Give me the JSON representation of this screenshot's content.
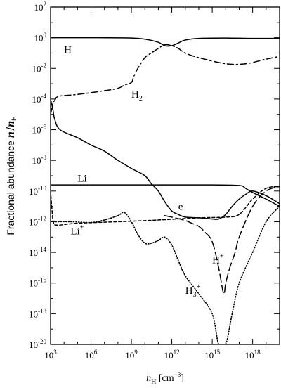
{
  "chart_data": {
    "type": "line",
    "title": "",
    "xlabel": "n_H [cm^-3]",
    "xlabel_parts": {
      "main": "n",
      "sub": "H",
      "unit": " [cm",
      "exp": "−3",
      "close": "]"
    },
    "ylabel": "Fractional abundance n_i/n_H",
    "ylabel_parts": {
      "text": "Fractional abundance ",
      "ni": "n",
      "i": "i",
      "slash": "/",
      "nh": "n",
      "h": "H"
    },
    "x_scale": "log",
    "y_scale": "log",
    "xlim": [
      1000,
      1e+20
    ],
    "ylim": [
      1e-20,
      100
    ],
    "x_ticks": [
      {
        "base": "10",
        "exp": "3",
        "value": 1000.0
      },
      {
        "base": "10",
        "exp": "6",
        "value": 1000000.0
      },
      {
        "base": "10",
        "exp": "9",
        "value": 1000000000.0
      },
      {
        "base": "10",
        "exp": "12",
        "value": 1000000000000.0
      },
      {
        "base": "10",
        "exp": "15",
        "value": 1000000000000000.0
      },
      {
        "base": "10",
        "exp": "18",
        "value": 1e+18
      }
    ],
    "y_ticks": [
      {
        "base": "10",
        "exp": "2",
        "value": 100.0
      },
      {
        "base": "10",
        "exp": "0",
        "value": 1.0
      },
      {
        "base": "10",
        "exp": "-2",
        "value": 0.01
      },
      {
        "base": "10",
        "exp": "-4",
        "value": 0.0001
      },
      {
        "base": "10",
        "exp": "-6",
        "value": 1e-06
      },
      {
        "base": "10",
        "exp": "-8",
        "value": 1e-08
      },
      {
        "base": "10",
        "exp": "-10",
        "value": 1e-10
      },
      {
        "base": "10",
        "exp": "-12",
        "value": 1e-12
      },
      {
        "base": "10",
        "exp": "-14",
        "value": 1e-14
      },
      {
        "base": "10",
        "exp": "-16",
        "value": 1e-16
      },
      {
        "base": "10",
        "exp": "-18",
        "value": 1e-18
      },
      {
        "base": "10",
        "exp": "-20",
        "value": 1e-20
      }
    ],
    "grid": false,
    "legend": "none",
    "series": [
      {
        "name": "H",
        "style": "solid",
        "label": {
          "text": "H",
          "sub": "",
          "sup": "",
          "at_x": 10000.0,
          "at_y": 0.1
        },
        "points": [
          [
            1000.0,
            1.0
          ],
          [
            1000000.0,
            1.0
          ],
          [
            1000000000.0,
            0.95
          ],
          [
            10000000000.0,
            0.8
          ],
          [
            100000000000.0,
            0.5
          ],
          [
            300000000000.0,
            0.3
          ],
          [
            1000000000000.0,
            0.3
          ],
          [
            3000000000000.0,
            0.45
          ],
          [
            10000000000000.0,
            0.7
          ],
          [
            100000000000000.0,
            0.9
          ],
          [
            1e+16,
            0.95
          ],
          [
            1e+18,
            0.9
          ],
          [
            1e+20,
            0.9
          ]
        ]
      },
      {
        "name": "H2",
        "style": "dashdot",
        "label": {
          "text": "H",
          "sub": "2",
          "sup": "",
          "at_x": 1000000000.0,
          "at_y": 0.00012
        },
        "points": [
          [
            1000.0,
            1e-05
          ],
          [
            1500.0,
            5e-05
          ],
          [
            2000.0,
            8e-05
          ],
          [
            4000.0,
            0.00015
          ],
          [
            100000.0,
            0.0002
          ],
          [
            10000000.0,
            0.00035
          ],
          [
            100000000.0,
            0.0005
          ],
          [
            300000000.0,
            0.0008
          ],
          [
            1000000000.0,
            0.0012
          ],
          [
            1500000000.0,
            0.003
          ],
          [
            3000000000.0,
            0.01
          ],
          [
            10000000000.0,
            0.05
          ],
          [
            30000000000.0,
            0.1
          ],
          [
            100000000000.0,
            0.2
          ],
          [
            300000000000.0,
            0.35
          ],
          [
            1000000000000.0,
            0.3
          ],
          [
            3000000000000.0,
            0.2
          ],
          [
            10000000000000.0,
            0.1
          ],
          [
            100000000000000.0,
            0.05
          ],
          [
            1e+16,
            0.02
          ],
          [
            3e+17,
            0.02
          ],
          [
            1e+19,
            0.04
          ],
          [
            1e+20,
            0.06
          ]
        ]
      },
      {
        "name": "e",
        "style": "solid",
        "label": {
          "text": "e",
          "sub": "",
          "sup": "",
          "at_x": 3000000000000.0,
          "at_y": 6e-12
        },
        "points": [
          [
            1000.0,
            0.0001
          ],
          [
            1500.0,
            2e-05
          ],
          [
            2000.0,
            5e-06
          ],
          [
            5000.0,
            1e-06
          ],
          [
            100000.0,
            3e-07
          ],
          [
            1000000.0,
            1e-07
          ],
          [
            10000000.0,
            4e-08
          ],
          [
            100000000.0,
            1e-08
          ],
          [
            1000000000.0,
            3e-09
          ],
          [
            10000000000.0,
            1e-09
          ],
          [
            30000000000.0,
            3e-10
          ],
          [
            100000000000.0,
            1e-10
          ],
          [
            300000000000.0,
            2e-11
          ],
          [
            1000000000000.0,
            5e-12
          ],
          [
            3000000000000.0,
            3e-12
          ],
          [
            10000000000000.0,
            2e-12
          ],
          [
            100000000000000.0,
            1.8e-12
          ],
          [
            1000000000000000.0,
            1.5e-12
          ],
          [
            3000000000000000.0,
            1.5e-12
          ],
          [
            1e+16,
            3e-12
          ],
          [
            3e+16,
            1e-11
          ],
          [
            1e+17,
            3e-11
          ],
          [
            3e+17,
            6e-11
          ],
          [
            1e+18,
            1e-10
          ],
          [
            1e+19,
            5e-11
          ],
          [
            1e+20,
            1.5e-11
          ]
        ]
      },
      {
        "name": "Li",
        "style": "solid",
        "label": {
          "text": "Li",
          "sub": "",
          "sup": "",
          "at_x": 100000.0,
          "at_y": 4e-10
        },
        "points": [
          [
            1000.0,
            2.5e-10
          ],
          [
            100000.0,
            2.5e-10
          ],
          [
            10000000000.0,
            2.5e-10
          ],
          [
            1000000000000000.0,
            2.5e-10
          ],
          [
            1e+17,
            2.3e-10
          ],
          [
            3e+17,
            1.5e-10
          ],
          [
            1e+18,
            8e-11
          ],
          [
            1e+19,
            3e-11
          ],
          [
            1e+20,
            1e-11
          ]
        ]
      },
      {
        "name": "Li+",
        "style": "dashed-short",
        "label": {
          "text": "Li",
          "sub": "",
          "sup": "+",
          "at_x": 30000.0,
          "at_y": 1.5e-13
        },
        "points": [
          [
            1000.0,
            1e-10
          ],
          [
            1100.0,
            3e-11
          ],
          [
            1300.0,
            5e-12
          ],
          [
            1600.0,
            1e-12
          ],
          [
            3000.0,
            6e-13
          ],
          [
            100000.0,
            8e-13
          ],
          [
            100000000.0,
            1e-12
          ],
          [
            100000000000.0,
            1.3e-12
          ],
          [
            100000000000000.0,
            1.8e-12
          ],
          [
            1e+16,
            2e-12
          ],
          [
            1e+17,
            3e-12
          ],
          [
            1e+18,
            3e-11
          ],
          [
            1e+19,
            1.5e-10
          ],
          [
            1e+20,
            2e-10
          ]
        ]
      },
      {
        "name": "H+",
        "style": "dashed-long",
        "label": {
          "text": "H",
          "sub": "",
          "sup": "+",
          "at_x": 1000000000000000.0,
          "at_y": 2e-15
        },
        "points": [
          [
            300000000000.0,
            2.5e-12
          ],
          [
            1000000000000.0,
            2e-12
          ],
          [
            10000000000000.0,
            1.2e-12
          ],
          [
            30000000000000.0,
            8e-13
          ],
          [
            100000000000000.0,
            5e-13
          ],
          [
            300000000000000.0,
            2e-13
          ],
          [
            1000000000000000.0,
            5e-14
          ],
          [
            3000000000000000.0,
            1e-15
          ],
          [
            7000000000000000.0,
            2e-17
          ],
          [
            1e+16,
            1e-16
          ],
          [
            2e+16,
            1e-15
          ],
          [
            5e+16,
            1e-14
          ],
          [
            1e+17,
            1e-13
          ],
          [
            1e+18,
            1e-11
          ],
          [
            1e+19,
            1e-10
          ],
          [
            1e+20,
            2e-10
          ]
        ]
      },
      {
        "name": "H3+",
        "style": "dotted",
        "label": {
          "text": "H",
          "sub": "3",
          "sup": "+",
          "at_x": 10000000000000.0,
          "at_y": 2e-17
        },
        "points": [
          [
            1000.0,
            1e-12
          ],
          [
            30000.0,
            1e-12
          ],
          [
            1000000.0,
            9e-13
          ],
          [
            10000000.0,
            1.3e-12
          ],
          [
            100000000.0,
            2.5e-12
          ],
          [
            300000000.0,
            4e-12
          ],
          [
            1000000000.0,
            1e-12
          ],
          [
            3000000000.0,
            1.5e-13
          ],
          [
            10000000000.0,
            4e-14
          ],
          [
            30000000000.0,
            4e-14
          ],
          [
            100000000000.0,
            6e-14
          ],
          [
            300000000000.0,
            1e-13
          ],
          [
            1000000000000.0,
            3e-14
          ],
          [
            3000000000000.0,
            3e-15
          ],
          [
            10000000000000.0,
            3e-16
          ],
          [
            100000000000000.0,
            2e-17
          ],
          [
            1000000000000000.0,
            1e-18
          ],
          [
            3000000000000000.0,
            1e-20
          ],
          [
            1e+16,
            1e-20
          ],
          [
            3e+16,
            1e-18
          ],
          [
            1e+17,
            1e-16
          ],
          [
            1e+18,
            1e-14
          ],
          [
            1e+19,
            1e-12
          ],
          [
            1e+20,
            1e-11
          ]
        ]
      }
    ]
  }
}
